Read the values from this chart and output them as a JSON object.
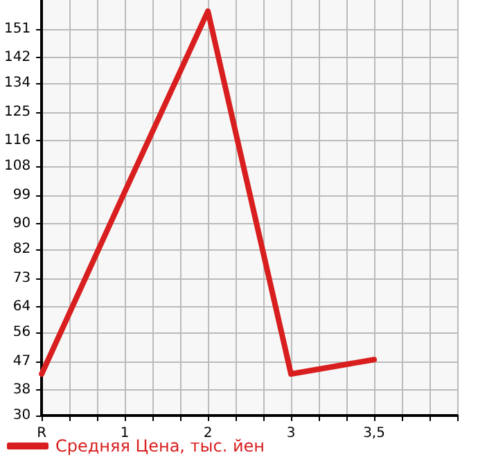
{
  "chart_data": {
    "type": "line",
    "categories": [
      "R",
      null,
      null,
      "1",
      null,
      null,
      "2",
      null,
      null,
      "3",
      null,
      null,
      "3,5",
      null,
      null,
      null
    ],
    "series": [
      {
        "name": "Средняя Цена, тыс. йен",
        "color": "#d81e1e",
        "x": [
          "R",
          "1",
          "2",
          "3",
          "3,5"
        ],
        "values": [
          43,
          100,
          156.5,
          43,
          47.5
        ]
      }
    ],
    "ylim": [
      30,
      160
    ],
    "yticks": [
      30,
      38,
      47,
      56,
      64,
      73,
      82,
      90,
      99,
      108,
      116,
      125,
      134,
      142,
      151
    ],
    "grid": true,
    "legend": "bottom left",
    "marker": "none",
    "line_style": "solid"
  }
}
